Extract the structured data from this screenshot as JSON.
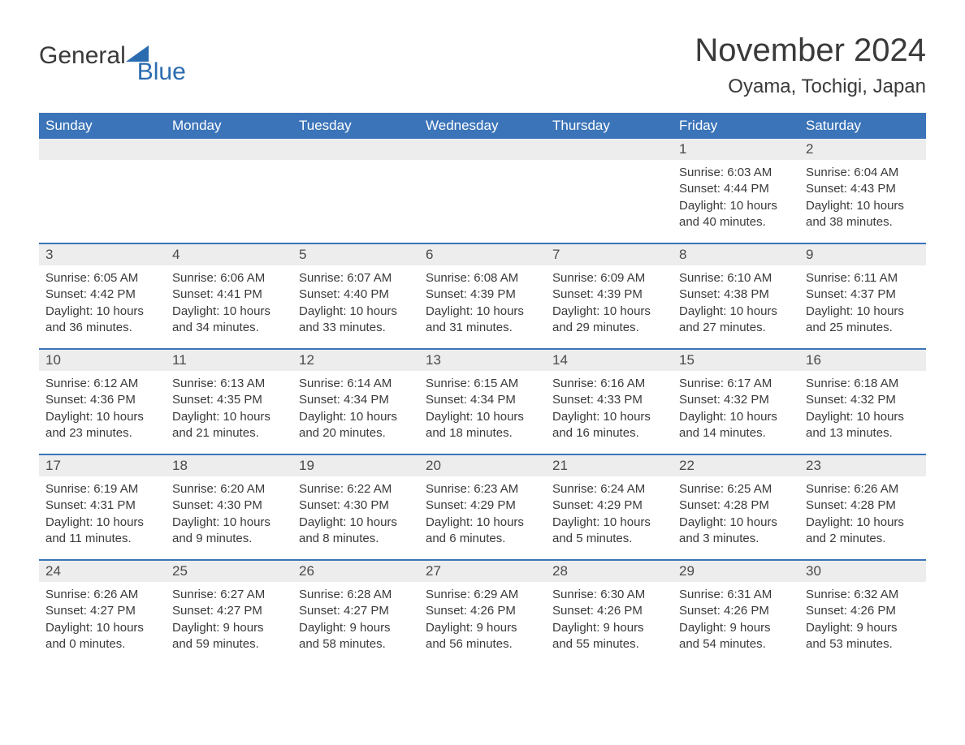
{
  "brand": {
    "word1": "General",
    "word2": "Blue",
    "logo_color": "#2b6cb0"
  },
  "title": "November 2024",
  "location": "Oyama, Tochigi, Japan",
  "colors": {
    "header_bg": "#3b74b9",
    "header_text": "#ffffff",
    "daynum_bg": "#ededed",
    "row_border": "#3b74b9",
    "body_text": "#3a3a3a"
  },
  "weekdays": [
    "Sunday",
    "Monday",
    "Tuesday",
    "Wednesday",
    "Thursday",
    "Friday",
    "Saturday"
  ],
  "weeks": [
    [
      {
        "empty": true
      },
      {
        "empty": true
      },
      {
        "empty": true
      },
      {
        "empty": true
      },
      {
        "empty": true
      },
      {
        "num": "1",
        "sunrise": "Sunrise: 6:03 AM",
        "sunset": "Sunset: 4:44 PM",
        "daylight": "Daylight: 10 hours and 40 minutes."
      },
      {
        "num": "2",
        "sunrise": "Sunrise: 6:04 AM",
        "sunset": "Sunset: 4:43 PM",
        "daylight": "Daylight: 10 hours and 38 minutes."
      }
    ],
    [
      {
        "num": "3",
        "sunrise": "Sunrise: 6:05 AM",
        "sunset": "Sunset: 4:42 PM",
        "daylight": "Daylight: 10 hours and 36 minutes."
      },
      {
        "num": "4",
        "sunrise": "Sunrise: 6:06 AM",
        "sunset": "Sunset: 4:41 PM",
        "daylight": "Daylight: 10 hours and 34 minutes."
      },
      {
        "num": "5",
        "sunrise": "Sunrise: 6:07 AM",
        "sunset": "Sunset: 4:40 PM",
        "daylight": "Daylight: 10 hours and 33 minutes."
      },
      {
        "num": "6",
        "sunrise": "Sunrise: 6:08 AM",
        "sunset": "Sunset: 4:39 PM",
        "daylight": "Daylight: 10 hours and 31 minutes."
      },
      {
        "num": "7",
        "sunrise": "Sunrise: 6:09 AM",
        "sunset": "Sunset: 4:39 PM",
        "daylight": "Daylight: 10 hours and 29 minutes."
      },
      {
        "num": "8",
        "sunrise": "Sunrise: 6:10 AM",
        "sunset": "Sunset: 4:38 PM",
        "daylight": "Daylight: 10 hours and 27 minutes."
      },
      {
        "num": "9",
        "sunrise": "Sunrise: 6:11 AM",
        "sunset": "Sunset: 4:37 PM",
        "daylight": "Daylight: 10 hours and 25 minutes."
      }
    ],
    [
      {
        "num": "10",
        "sunrise": "Sunrise: 6:12 AM",
        "sunset": "Sunset: 4:36 PM",
        "daylight": "Daylight: 10 hours and 23 minutes."
      },
      {
        "num": "11",
        "sunrise": "Sunrise: 6:13 AM",
        "sunset": "Sunset: 4:35 PM",
        "daylight": "Daylight: 10 hours and 21 minutes."
      },
      {
        "num": "12",
        "sunrise": "Sunrise: 6:14 AM",
        "sunset": "Sunset: 4:34 PM",
        "daylight": "Daylight: 10 hours and 20 minutes."
      },
      {
        "num": "13",
        "sunrise": "Sunrise: 6:15 AM",
        "sunset": "Sunset: 4:34 PM",
        "daylight": "Daylight: 10 hours and 18 minutes."
      },
      {
        "num": "14",
        "sunrise": "Sunrise: 6:16 AM",
        "sunset": "Sunset: 4:33 PM",
        "daylight": "Daylight: 10 hours and 16 minutes."
      },
      {
        "num": "15",
        "sunrise": "Sunrise: 6:17 AM",
        "sunset": "Sunset: 4:32 PM",
        "daylight": "Daylight: 10 hours and 14 minutes."
      },
      {
        "num": "16",
        "sunrise": "Sunrise: 6:18 AM",
        "sunset": "Sunset: 4:32 PM",
        "daylight": "Daylight: 10 hours and 13 minutes."
      }
    ],
    [
      {
        "num": "17",
        "sunrise": "Sunrise: 6:19 AM",
        "sunset": "Sunset: 4:31 PM",
        "daylight": "Daylight: 10 hours and 11 minutes."
      },
      {
        "num": "18",
        "sunrise": "Sunrise: 6:20 AM",
        "sunset": "Sunset: 4:30 PM",
        "daylight": "Daylight: 10 hours and 9 minutes."
      },
      {
        "num": "19",
        "sunrise": "Sunrise: 6:22 AM",
        "sunset": "Sunset: 4:30 PM",
        "daylight": "Daylight: 10 hours and 8 minutes."
      },
      {
        "num": "20",
        "sunrise": "Sunrise: 6:23 AM",
        "sunset": "Sunset: 4:29 PM",
        "daylight": "Daylight: 10 hours and 6 minutes."
      },
      {
        "num": "21",
        "sunrise": "Sunrise: 6:24 AM",
        "sunset": "Sunset: 4:29 PM",
        "daylight": "Daylight: 10 hours and 5 minutes."
      },
      {
        "num": "22",
        "sunrise": "Sunrise: 6:25 AM",
        "sunset": "Sunset: 4:28 PM",
        "daylight": "Daylight: 10 hours and 3 minutes."
      },
      {
        "num": "23",
        "sunrise": "Sunrise: 6:26 AM",
        "sunset": "Sunset: 4:28 PM",
        "daylight": "Daylight: 10 hours and 2 minutes."
      }
    ],
    [
      {
        "num": "24",
        "sunrise": "Sunrise: 6:26 AM",
        "sunset": "Sunset: 4:27 PM",
        "daylight": "Daylight: 10 hours and 0 minutes."
      },
      {
        "num": "25",
        "sunrise": "Sunrise: 6:27 AM",
        "sunset": "Sunset: 4:27 PM",
        "daylight": "Daylight: 9 hours and 59 minutes."
      },
      {
        "num": "26",
        "sunrise": "Sunrise: 6:28 AM",
        "sunset": "Sunset: 4:27 PM",
        "daylight": "Daylight: 9 hours and 58 minutes."
      },
      {
        "num": "27",
        "sunrise": "Sunrise: 6:29 AM",
        "sunset": "Sunset: 4:26 PM",
        "daylight": "Daylight: 9 hours and 56 minutes."
      },
      {
        "num": "28",
        "sunrise": "Sunrise: 6:30 AM",
        "sunset": "Sunset: 4:26 PM",
        "daylight": "Daylight: 9 hours and 55 minutes."
      },
      {
        "num": "29",
        "sunrise": "Sunrise: 6:31 AM",
        "sunset": "Sunset: 4:26 PM",
        "daylight": "Daylight: 9 hours and 54 minutes."
      },
      {
        "num": "30",
        "sunrise": "Sunrise: 6:32 AM",
        "sunset": "Sunset: 4:26 PM",
        "daylight": "Daylight: 9 hours and 53 minutes."
      }
    ]
  ]
}
